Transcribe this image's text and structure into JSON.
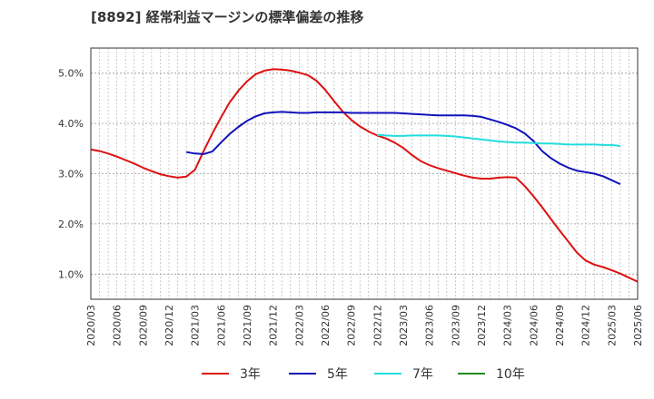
{
  "chart_data": {
    "type": "line",
    "title": "[8892]  経常利益マージンの標準偏差の推移",
    "x_ticks": [
      "2020/03",
      "2020/06",
      "2020/09",
      "2020/12",
      "2021/03",
      "2021/06",
      "2021/09",
      "2021/12",
      "2022/03",
      "2022/06",
      "2022/09",
      "2022/12",
      "2023/03",
      "2023/06",
      "2023/09",
      "2023/12",
      "2024/03",
      "2024/06",
      "2024/09",
      "2024/12",
      "2025/03",
      "2025/06"
    ],
    "y_ticks": [
      "1.0%",
      "2.0%",
      "3.0%",
      "4.0%",
      "5.0%"
    ],
    "ylim": [
      0.5,
      5.5
    ],
    "grid": true,
    "legend_position": "bottom",
    "series": [
      {
        "name": "3年",
        "color": "#dd1111",
        "points": [
          [
            "2020/03",
            3.48
          ],
          [
            "2020/04",
            3.45
          ],
          [
            "2020/05",
            3.4
          ],
          [
            "2020/06",
            3.34
          ],
          [
            "2020/07",
            3.27
          ],
          [
            "2020/08",
            3.2
          ],
          [
            "2020/09",
            3.12
          ],
          [
            "2020/10",
            3.05
          ],
          [
            "2020/11",
            2.99
          ],
          [
            "2020/12",
            2.95
          ],
          [
            "2021/01",
            2.92
          ],
          [
            "2021/02",
            2.94
          ],
          [
            "2021/03",
            3.08
          ],
          [
            "2021/04",
            3.45
          ],
          [
            "2021/05",
            3.8
          ],
          [
            "2021/06",
            4.12
          ],
          [
            "2021/07",
            4.42
          ],
          [
            "2021/08",
            4.65
          ],
          [
            "2021/09",
            4.84
          ],
          [
            "2021/10",
            4.98
          ],
          [
            "2021/11",
            5.05
          ],
          [
            "2021/12",
            5.08
          ],
          [
            "2022/01",
            5.07
          ],
          [
            "2022/02",
            5.05
          ],
          [
            "2022/03",
            5.01
          ],
          [
            "2022/04",
            4.96
          ],
          [
            "2022/05",
            4.85
          ],
          [
            "2022/06",
            4.67
          ],
          [
            "2022/07",
            4.45
          ],
          [
            "2022/08",
            4.24
          ],
          [
            "2022/09",
            4.07
          ],
          [
            "2022/10",
            3.94
          ],
          [
            "2022/11",
            3.84
          ],
          [
            "2022/12",
            3.76
          ],
          [
            "2023/01",
            3.7
          ],
          [
            "2023/02",
            3.62
          ],
          [
            "2023/03",
            3.51
          ],
          [
            "2023/04",
            3.37
          ],
          [
            "2023/05",
            3.25
          ],
          [
            "2023/06",
            3.17
          ],
          [
            "2023/07",
            3.11
          ],
          [
            "2023/08",
            3.06
          ],
          [
            "2023/09",
            3.01
          ],
          [
            "2023/10",
            2.96
          ],
          [
            "2023/11",
            2.92
          ],
          [
            "2023/12",
            2.9
          ],
          [
            "2024/01",
            2.9
          ],
          [
            "2024/02",
            2.92
          ],
          [
            "2024/03",
            2.93
          ],
          [
            "2024/04",
            2.92
          ],
          [
            "2024/05",
            2.75
          ],
          [
            "2024/06",
            2.55
          ],
          [
            "2024/07",
            2.33
          ],
          [
            "2024/08",
            2.1
          ],
          [
            "2024/09",
            1.87
          ],
          [
            "2024/10",
            1.65
          ],
          [
            "2024/11",
            1.43
          ],
          [
            "2024/12",
            1.27
          ],
          [
            "2025/01",
            1.19
          ],
          [
            "2025/02",
            1.14
          ],
          [
            "2025/03",
            1.08
          ],
          [
            "2025/04",
            1.01
          ],
          [
            "2025/05",
            0.93
          ],
          [
            "2025/06",
            0.85
          ]
        ]
      },
      {
        "name": "5年",
        "color": "#1111bb",
        "points": [
          [
            "2021/02",
            3.43
          ],
          [
            "2021/03",
            3.4
          ],
          [
            "2021/04",
            3.39
          ],
          [
            "2021/05",
            3.44
          ],
          [
            "2021/06",
            3.62
          ],
          [
            "2021/07",
            3.79
          ],
          [
            "2021/08",
            3.93
          ],
          [
            "2021/09",
            4.05
          ],
          [
            "2021/10",
            4.14
          ],
          [
            "2021/11",
            4.2
          ],
          [
            "2021/12",
            4.22
          ],
          [
            "2022/01",
            4.23
          ],
          [
            "2022/02",
            4.22
          ],
          [
            "2022/03",
            4.21
          ],
          [
            "2022/04",
            4.21
          ],
          [
            "2022/05",
            4.22
          ],
          [
            "2022/06",
            4.22
          ],
          [
            "2022/07",
            4.22
          ],
          [
            "2022/08",
            4.22
          ],
          [
            "2022/09",
            4.21
          ],
          [
            "2022/10",
            4.21
          ],
          [
            "2022/11",
            4.21
          ],
          [
            "2022/12",
            4.21
          ],
          [
            "2023/01",
            4.21
          ],
          [
            "2023/02",
            4.21
          ],
          [
            "2023/03",
            4.2
          ],
          [
            "2023/04",
            4.19
          ],
          [
            "2023/05",
            4.18
          ],
          [
            "2023/06",
            4.17
          ],
          [
            "2023/07",
            4.16
          ],
          [
            "2023/08",
            4.16
          ],
          [
            "2023/09",
            4.16
          ],
          [
            "2023/10",
            4.16
          ],
          [
            "2023/11",
            4.15
          ],
          [
            "2023/12",
            4.13
          ],
          [
            "2024/01",
            4.08
          ],
          [
            "2024/02",
            4.03
          ],
          [
            "2024/03",
            3.97
          ],
          [
            "2024/04",
            3.9
          ],
          [
            "2024/05",
            3.8
          ],
          [
            "2024/06",
            3.65
          ],
          [
            "2024/07",
            3.45
          ],
          [
            "2024/08",
            3.31
          ],
          [
            "2024/09",
            3.2
          ],
          [
            "2024/10",
            3.12
          ],
          [
            "2024/11",
            3.06
          ],
          [
            "2024/12",
            3.03
          ],
          [
            "2025/01",
            3.0
          ],
          [
            "2025/02",
            2.95
          ],
          [
            "2025/03",
            2.87
          ],
          [
            "2025/04",
            2.79
          ]
        ]
      },
      {
        "name": "7年",
        "color": "#22dddd",
        "points": [
          [
            "2022/12",
            3.77
          ],
          [
            "2023/01",
            3.76
          ],
          [
            "2023/02",
            3.75
          ],
          [
            "2023/03",
            3.75
          ],
          [
            "2023/04",
            3.76
          ],
          [
            "2023/05",
            3.76
          ],
          [
            "2023/06",
            3.76
          ],
          [
            "2023/07",
            3.76
          ],
          [
            "2023/08",
            3.75
          ],
          [
            "2023/09",
            3.74
          ],
          [
            "2023/10",
            3.72
          ],
          [
            "2023/11",
            3.7
          ],
          [
            "2023/12",
            3.68
          ],
          [
            "2024/01",
            3.66
          ],
          [
            "2024/02",
            3.64
          ],
          [
            "2024/03",
            3.63
          ],
          [
            "2024/04",
            3.62
          ],
          [
            "2024/05",
            3.62
          ],
          [
            "2024/06",
            3.61
          ],
          [
            "2024/07",
            3.6
          ],
          [
            "2024/08",
            3.6
          ],
          [
            "2024/09",
            3.59
          ],
          [
            "2024/10",
            3.58
          ],
          [
            "2024/11",
            3.58
          ],
          [
            "2024/12",
            3.58
          ],
          [
            "2025/01",
            3.58
          ],
          [
            "2025/02",
            3.57
          ],
          [
            "2025/03",
            3.57
          ],
          [
            "2025/04",
            3.55
          ]
        ]
      },
      {
        "name": "10年",
        "color": "#228822",
        "points": []
      }
    ]
  }
}
